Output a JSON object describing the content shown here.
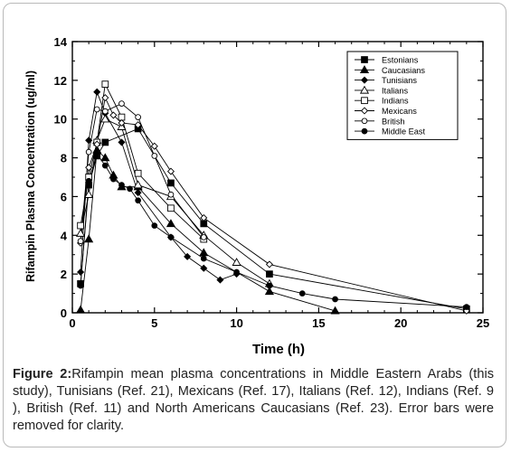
{
  "caption": {
    "label": "Figure 2:",
    "text": "Rifampin mean plasma concentrations in Middle Eastern Arabs (this study), Tunisians (Ref. 21), Mexicans (Ref. 17), Italians (Ref. 12), Indians (Ref. 9 ), British (Ref. 11) and North Americans Caucasians (Ref. 23). Error bars were removed for clarity."
  },
  "chart_data": {
    "type": "line",
    "xlabel": "Time (h)",
    "ylabel": "Rifampin Plasma Concentration (ug/ml)",
    "xlim": [
      0,
      25
    ],
    "ylim": [
      0,
      14
    ],
    "xticks": [
      0,
      5,
      10,
      15,
      20,
      25
    ],
    "yticks": [
      0,
      2,
      4,
      6,
      8,
      10,
      12,
      14
    ],
    "grid": false,
    "legend_position": "top-right",
    "series": [
      {
        "name": "Estonians",
        "marker": "square-filled",
        "x": [
          0.5,
          1,
          1.5,
          2,
          4,
          6,
          8,
          12,
          24
        ],
        "y": [
          1.5,
          6.6,
          8.1,
          8.8,
          9.5,
          6.7,
          4.6,
          2.0,
          0.2
        ]
      },
      {
        "name": "Caucasians",
        "marker": "triangle-filled",
        "x": [
          0.5,
          1,
          1.5,
          2,
          2.5,
          3,
          4,
          6,
          8,
          12,
          16
        ],
        "y": [
          0.15,
          3.8,
          8.4,
          8.0,
          7.1,
          6.5,
          6.5,
          4.6,
          3.1,
          1.1,
          0.1
        ]
      },
      {
        "name": "Tunisians",
        "marker": "diamond-filled",
        "x": [
          0.5,
          1,
          1.5,
          2,
          3,
          4,
          6,
          7,
          8,
          9,
          10
        ],
        "y": [
          2.1,
          8.9,
          11.4,
          10.3,
          8.8,
          6.2,
          3.9,
          2.9,
          2.3,
          1.7,
          2.0
        ]
      },
      {
        "name": "Italians",
        "marker": "triangle-open",
        "x": [
          0.5,
          1,
          1.5,
          2,
          3,
          4,
          6,
          8,
          10,
          12
        ],
        "y": [
          4.1,
          6.1,
          8.9,
          10.0,
          9.6,
          6.6,
          6.0,
          4.0,
          2.6,
          1.5
        ]
      },
      {
        "name": "Indians",
        "marker": "square-open",
        "x": [
          0.5,
          1,
          1.5,
          2,
          3,
          4,
          6,
          8
        ],
        "y": [
          4.5,
          7.0,
          8.8,
          11.8,
          10.1,
          7.2,
          5.4,
          3.8
        ]
      },
      {
        "name": "Mexicans",
        "marker": "diamond-open",
        "x": [
          0.5,
          1,
          1.5,
          2,
          2.5,
          3,
          4,
          5,
          6,
          8,
          12,
          24
        ],
        "y": [
          3.6,
          7.5,
          8.7,
          11.1,
          10.2,
          9.8,
          9.7,
          8.6,
          7.3,
          4.9,
          2.5,
          0.1
        ]
      },
      {
        "name": "British",
        "marker": "circle-open",
        "x": [
          0.5,
          1,
          1.5,
          2,
          3,
          4,
          5,
          6,
          8
        ],
        "y": [
          3.7,
          8.3,
          10.5,
          10.4,
          10.8,
          10.1,
          8.1,
          6.1,
          3.9
        ]
      },
      {
        "name": "Middle East",
        "marker": "circle-filled",
        "x": [
          0.5,
          1,
          1.5,
          2,
          2.5,
          3,
          3.5,
          4,
          5,
          6,
          8,
          10,
          12,
          14,
          16,
          24
        ],
        "y": [
          1.4,
          6.8,
          8.2,
          7.6,
          6.9,
          6.6,
          6.4,
          5.8,
          4.5,
          3.9,
          2.8,
          2.1,
          1.4,
          1.0,
          0.7,
          0.3
        ]
      }
    ]
  }
}
